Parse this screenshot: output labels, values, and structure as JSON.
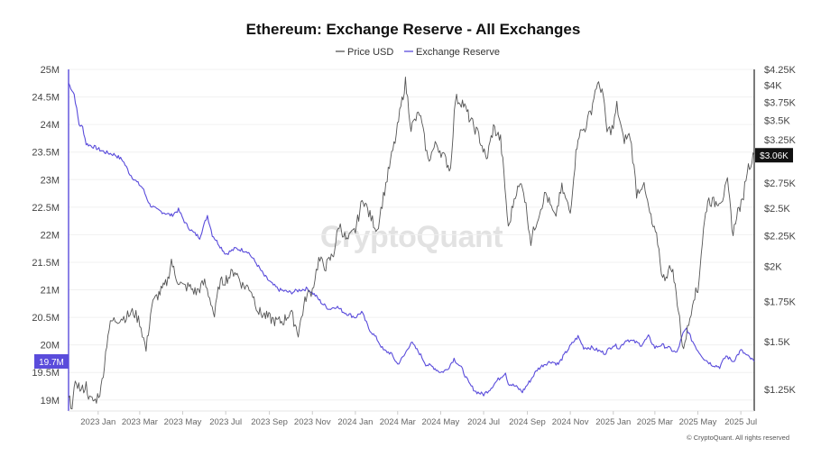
{
  "chart_data": {
    "type": "line",
    "title": "Ethereum: Exchange Reserve - All Exchanges",
    "legend": [
      {
        "name": "Price USD",
        "color": "#555555"
      },
      {
        "name": "Exchange Reserve",
        "color": "#5a4cdb"
      }
    ],
    "legend_position": "top-center",
    "watermark": "CryptoQuant",
    "copyright": "© CryptoQuant. All rights reserved",
    "x_range": [
      "2022-11-20",
      "2025-07-20"
    ],
    "x_ticks": [
      "2023 Jan",
      "2023 Mar",
      "2023 May",
      "2023 Jul",
      "2023 Sep",
      "2023 Nov",
      "2024 Jan",
      "2024 Mar",
      "2024 May",
      "2024 Jul",
      "2024 Sep",
      "2024 Nov",
      "2025 Jan",
      "2025 Mar",
      "2025 May",
      "2025 Jul"
    ],
    "x_tick_dates": [
      "2023-01-01",
      "2023-03-01",
      "2023-05-01",
      "2023-07-01",
      "2023-09-01",
      "2023-11-01",
      "2024-01-01",
      "2024-03-01",
      "2024-05-01",
      "2024-07-01",
      "2024-09-01",
      "2024-11-01",
      "2025-01-01",
      "2025-03-01",
      "2025-05-01",
      "2025-07-01"
    ],
    "y_left": {
      "label": "Exchange Reserve",
      "range": [
        18.8,
        25.0
      ],
      "ticks": [
        19,
        19.5,
        20,
        20.5,
        21,
        21.5,
        22,
        22.5,
        23,
        23.5,
        24,
        24.5,
        25
      ],
      "tick_labels": [
        "19M",
        "19.5M",
        "20M",
        "20.5M",
        "21M",
        "21.5M",
        "22M",
        "22.5M",
        "23M",
        "23.5M",
        "24M",
        "24.5M",
        "25M"
      ]
    },
    "y_right": {
      "label": "Price USD",
      "scale": "log",
      "range": [
        1150,
        4250
      ],
      "ticks": [
        1250,
        1500,
        1750,
        2000,
        2250,
        2500,
        2750,
        3250,
        3500,
        3750,
        4000,
        4250
      ],
      "tick_labels": [
        "$1.25K",
        "$1.5K",
        "$1.75K",
        "$2K",
        "$2.25K",
        "$2.5K",
        "$2.75K",
        "$3.25K",
        "$3.5K",
        "$3.75K",
        "$4K",
        "$4.25K"
      ]
    },
    "current_badges": {
      "reserve": "19.7M",
      "price": "$3.06K"
    },
    "series": [
      {
        "name": "Exchange Reserve",
        "axis": "left",
        "color": "#5a4cdb",
        "points": [
          [
            "2022-11-20",
            24.75
          ],
          [
            "2022-11-28",
            24.55
          ],
          [
            "2022-12-05",
            24.0
          ],
          [
            "2022-12-10",
            23.95
          ],
          [
            "2022-12-15",
            23.65
          ],
          [
            "2022-12-25",
            23.6
          ],
          [
            "2023-01-10",
            23.5
          ],
          [
            "2023-01-25",
            23.45
          ],
          [
            "2023-02-05",
            23.35
          ],
          [
            "2023-02-15",
            23.1
          ],
          [
            "2023-02-25",
            22.95
          ],
          [
            "2023-03-05",
            22.85
          ],
          [
            "2023-03-15",
            22.55
          ],
          [
            "2023-03-25",
            22.45
          ],
          [
            "2023-04-05",
            22.4
          ],
          [
            "2023-04-15",
            22.35
          ],
          [
            "2023-04-25",
            22.45
          ],
          [
            "2023-05-05",
            22.2
          ],
          [
            "2023-05-15",
            22.05
          ],
          [
            "2023-05-25",
            21.95
          ],
          [
            "2023-06-05",
            22.35
          ],
          [
            "2023-06-12",
            22.0
          ],
          [
            "2023-06-20",
            21.85
          ],
          [
            "2023-07-01",
            21.65
          ],
          [
            "2023-07-15",
            21.75
          ],
          [
            "2023-08-01",
            21.7
          ],
          [
            "2023-08-15",
            21.45
          ],
          [
            "2023-08-25",
            21.25
          ],
          [
            "2023-09-05",
            21.1
          ],
          [
            "2023-09-15",
            21.0
          ],
          [
            "2023-10-01",
            20.95
          ],
          [
            "2023-10-15",
            21.0
          ],
          [
            "2023-10-25",
            21.02
          ],
          [
            "2023-11-05",
            20.9
          ],
          [
            "2023-11-15",
            20.75
          ],
          [
            "2023-11-25",
            20.65
          ],
          [
            "2023-12-05",
            20.7
          ],
          [
            "2023-12-15",
            20.6
          ],
          [
            "2024-01-01",
            20.5
          ],
          [
            "2024-01-10",
            20.6
          ],
          [
            "2024-01-20",
            20.3
          ],
          [
            "2024-02-01",
            20.1
          ],
          [
            "2024-02-10",
            19.9
          ],
          [
            "2024-02-20",
            19.85
          ],
          [
            "2024-03-01",
            19.65
          ],
          [
            "2024-03-10",
            19.8
          ],
          [
            "2024-03-20",
            20.05
          ],
          [
            "2024-04-01",
            19.85
          ],
          [
            "2024-04-10",
            19.65
          ],
          [
            "2024-04-20",
            19.6
          ],
          [
            "2024-05-01",
            19.5
          ],
          [
            "2024-05-10",
            19.55
          ],
          [
            "2024-05-20",
            19.75
          ],
          [
            "2024-06-01",
            19.55
          ],
          [
            "2024-06-10",
            19.3
          ],
          [
            "2024-06-20",
            19.15
          ],
          [
            "2024-07-01",
            19.1
          ],
          [
            "2024-07-10",
            19.2
          ],
          [
            "2024-07-20",
            19.35
          ],
          [
            "2024-08-01",
            19.5
          ],
          [
            "2024-08-05",
            19.3
          ],
          [
            "2024-08-15",
            19.25
          ],
          [
            "2024-08-25",
            19.15
          ],
          [
            "2024-09-05",
            19.35
          ],
          [
            "2024-09-15",
            19.55
          ],
          [
            "2024-09-25",
            19.65
          ],
          [
            "2024-10-05",
            19.7
          ],
          [
            "2024-10-15",
            19.65
          ],
          [
            "2024-10-25",
            19.85
          ],
          [
            "2024-11-05",
            20.05
          ],
          [
            "2024-11-12",
            20.15
          ],
          [
            "2024-11-20",
            19.95
          ],
          [
            "2024-12-01",
            19.95
          ],
          [
            "2024-12-10",
            19.9
          ],
          [
            "2024-12-20",
            19.85
          ],
          [
            "2025-01-01",
            20.0
          ],
          [
            "2025-01-10",
            19.95
          ],
          [
            "2025-01-20",
            20.1
          ],
          [
            "2025-02-01",
            20.05
          ],
          [
            "2025-02-10",
            20.0
          ],
          [
            "2025-02-20",
            20.15
          ],
          [
            "2025-03-01",
            19.95
          ],
          [
            "2025-03-10",
            20.0
          ],
          [
            "2025-03-20",
            19.95
          ],
          [
            "2025-04-01",
            19.85
          ],
          [
            "2025-04-10",
            20.2
          ],
          [
            "2025-04-15",
            20.3
          ],
          [
            "2025-04-22",
            20.1
          ],
          [
            "2025-05-01",
            19.9
          ],
          [
            "2025-05-10",
            19.75
          ],
          [
            "2025-05-20",
            19.65
          ],
          [
            "2025-06-01",
            19.6
          ],
          [
            "2025-06-10",
            19.8
          ],
          [
            "2025-06-20",
            19.7
          ],
          [
            "2025-07-01",
            19.9
          ],
          [
            "2025-07-10",
            19.8
          ],
          [
            "2025-07-20",
            19.7
          ]
        ]
      },
      {
        "name": "Price USD",
        "axis": "right",
        "color": "#555555",
        "points": [
          [
            "2022-11-20",
            1200
          ],
          [
            "2022-11-25",
            1180
          ],
          [
            "2022-12-01",
            1290
          ],
          [
            "2022-12-08",
            1240
          ],
          [
            "2022-12-15",
            1270
          ],
          [
            "2022-12-20",
            1200
          ],
          [
            "2022-12-28",
            1195
          ],
          [
            "2023-01-05",
            1250
          ],
          [
            "2023-01-10",
            1380
          ],
          [
            "2023-01-15",
            1550
          ],
          [
            "2023-01-20",
            1620
          ],
          [
            "2023-02-01",
            1640
          ],
          [
            "2023-02-10",
            1650
          ],
          [
            "2023-02-20",
            1680
          ],
          [
            "2023-03-01",
            1620
          ],
          [
            "2023-03-10",
            1450
          ],
          [
            "2023-03-18",
            1720
          ],
          [
            "2023-03-25",
            1780
          ],
          [
            "2023-04-05",
            1850
          ],
          [
            "2023-04-10",
            1900
          ],
          [
            "2023-04-15",
            2050
          ],
          [
            "2023-04-20",
            1930
          ],
          [
            "2023-05-01",
            1850
          ],
          [
            "2023-05-10",
            1850
          ],
          [
            "2023-05-20",
            1810
          ],
          [
            "2023-06-01",
            1880
          ],
          [
            "2023-06-10",
            1750
          ],
          [
            "2023-06-15",
            1650
          ],
          [
            "2023-06-22",
            1870
          ],
          [
            "2023-07-05",
            1920
          ],
          [
            "2023-07-14",
            1970
          ],
          [
            "2023-07-25",
            1860
          ],
          [
            "2023-08-05",
            1840
          ],
          [
            "2023-08-17",
            1680
          ],
          [
            "2023-08-28",
            1650
          ],
          [
            "2023-09-10",
            1620
          ],
          [
            "2023-09-20",
            1620
          ],
          [
            "2023-10-01",
            1680
          ],
          [
            "2023-10-12",
            1550
          ],
          [
            "2023-10-23",
            1780
          ],
          [
            "2023-11-01",
            1830
          ],
          [
            "2023-11-10",
            2050
          ],
          [
            "2023-11-20",
            2000
          ],
          [
            "2023-12-01",
            2100
          ],
          [
            "2023-12-09",
            2350
          ],
          [
            "2023-12-20",
            2200
          ],
          [
            "2024-01-01",
            2300
          ],
          [
            "2024-01-12",
            2600
          ],
          [
            "2024-01-20",
            2450
          ],
          [
            "2024-02-01",
            2300
          ],
          [
            "2024-02-15",
            2800
          ],
          [
            "2024-02-28",
            3300
          ],
          [
            "2024-03-12",
            4050
          ],
          [
            "2024-03-20",
            3400
          ],
          [
            "2024-04-01",
            3600
          ],
          [
            "2024-04-13",
            3000
          ],
          [
            "2024-04-25",
            3200
          ],
          [
            "2024-05-05",
            3050
          ],
          [
            "2024-05-15",
            2900
          ],
          [
            "2024-05-22",
            3800
          ],
          [
            "2024-06-01",
            3750
          ],
          [
            "2024-06-12",
            3500
          ],
          [
            "2024-06-24",
            3300
          ],
          [
            "2024-07-05",
            3000
          ],
          [
            "2024-07-15",
            3400
          ],
          [
            "2024-07-25",
            3250
          ],
          [
            "2024-08-05",
            2300
          ],
          [
            "2024-08-15",
            2650
          ],
          [
            "2024-08-25",
            2750
          ],
          [
            "2024-09-06",
            2200
          ],
          [
            "2024-09-15",
            2400
          ],
          [
            "2024-09-27",
            2650
          ],
          [
            "2024-10-10",
            2400
          ],
          [
            "2024-10-20",
            2700
          ],
          [
            "2024-11-01",
            2450
          ],
          [
            "2024-11-06",
            2850
          ],
          [
            "2024-11-12",
            3300
          ],
          [
            "2024-11-22",
            3400
          ],
          [
            "2024-12-01",
            3650
          ],
          [
            "2024-12-08",
            4000
          ],
          [
            "2024-12-16",
            3950
          ],
          [
            "2024-12-23",
            3350
          ],
          [
            "2025-01-01",
            3400
          ],
          [
            "2025-01-06",
            3700
          ],
          [
            "2025-01-15",
            3250
          ],
          [
            "2025-01-25",
            3300
          ],
          [
            "2025-02-03",
            2650
          ],
          [
            "2025-02-12",
            2750
          ],
          [
            "2025-02-25",
            2350
          ],
          [
            "2025-03-05",
            2200
          ],
          [
            "2025-03-12",
            1900
          ],
          [
            "2025-03-25",
            2000
          ],
          [
            "2025-04-05",
            1650
          ],
          [
            "2025-04-09",
            1450
          ],
          [
            "2025-04-18",
            1600
          ],
          [
            "2025-04-25",
            1790
          ],
          [
            "2025-05-01",
            1820
          ],
          [
            "2025-05-09",
            2300
          ],
          [
            "2025-05-15",
            2580
          ],
          [
            "2025-05-25",
            2550
          ],
          [
            "2025-06-05",
            2600
          ],
          [
            "2025-06-12",
            2750
          ],
          [
            "2025-06-20",
            2250
          ],
          [
            "2025-06-25",
            2450
          ],
          [
            "2025-07-03",
            2550
          ],
          [
            "2025-07-10",
            2900
          ],
          [
            "2025-07-20",
            3060
          ]
        ]
      }
    ]
  }
}
